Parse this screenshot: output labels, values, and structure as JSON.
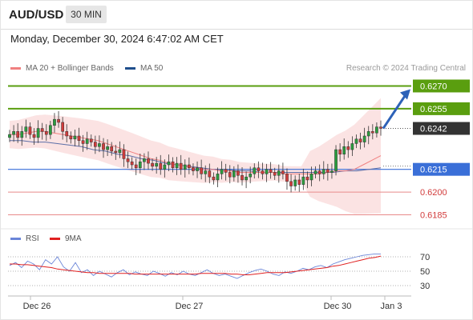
{
  "header": {
    "symbol": "AUD/USD",
    "timeframe": "30 MIN",
    "datetime": "Monday, December 30, 2024 6:47:02 AM CET"
  },
  "legend": {
    "ma20_label": "MA 20 + Bollinger Bands",
    "ma20_color": "#f08080",
    "ma50_label": "MA 50",
    "ma50_color": "#1f4e8c"
  },
  "credit": "Research © 2024 Trading Central",
  "rsi_legend": {
    "rsi_label": "RSI",
    "rsi_color": "#6a85d8",
    "ma9_label": "9MA",
    "ma9_color": "#e02020"
  },
  "colors": {
    "resistance": "#5a9e0f",
    "support_blue": "#3a6fd8",
    "support_red": "#e88a8a",
    "candle_up": "#2a9d3e",
    "candle_down": "#d23c3c",
    "arrow": "#2d62b8",
    "current": "#333333",
    "band_fill": "#fbe3e3"
  },
  "chart_data": [
    {
      "type": "line",
      "title": "AUD/USD 30 MIN",
      "x_ticks": [
        "Dec 26",
        "Dec 27",
        "Dec 30",
        "Jan 3"
      ],
      "ylim": [
        0.618,
        0.6275
      ],
      "levels": [
        {
          "value": 0.627,
          "label": "0.6270",
          "kind": "resistance"
        },
        {
          "value": 0.6255,
          "label": "0.6255",
          "kind": "resistance"
        },
        {
          "value": 0.6242,
          "label": "0.6242",
          "kind": "current"
        },
        {
          "value": 0.6215,
          "label": "0.6215",
          "kind": "support"
        },
        {
          "value": 0.62,
          "label": "0.6200",
          "kind": "level"
        },
        {
          "value": 0.6185,
          "label": "0.6185",
          "kind": "level"
        }
      ],
      "series": [
        {
          "name": "Price",
          "values": [
            0.6238,
            0.624,
            0.6236,
            0.624,
            0.6243,
            0.6238,
            0.6236,
            0.6242,
            0.624,
            0.6238,
            0.6244,
            0.6248,
            0.6246,
            0.624,
            0.6237,
            0.6235,
            0.6237,
            0.6234,
            0.6232,
            0.6235,
            0.6233,
            0.623,
            0.6232,
            0.6228,
            0.623,
            0.6227,
            0.6226,
            0.6228,
            0.6222,
            0.622,
            0.6218,
            0.6216,
            0.622,
            0.6222,
            0.6219,
            0.6217,
            0.6219,
            0.6215,
            0.6218,
            0.622,
            0.6216,
            0.6219,
            0.6215,
            0.6218,
            0.6216,
            0.6214,
            0.6216,
            0.6212,
            0.6214,
            0.621,
            0.6208,
            0.6212,
            0.6215,
            0.6213,
            0.621,
            0.6214,
            0.6211,
            0.6208,
            0.621,
            0.6212,
            0.6216,
            0.6214,
            0.6212,
            0.6215,
            0.6213,
            0.6211,
            0.6214,
            0.6212,
            0.6207,
            0.6204,
            0.6208,
            0.6205,
            0.621,
            0.6208,
            0.6212,
            0.6214,
            0.6212,
            0.6215,
            0.6213,
            0.6214,
            0.6228,
            0.6225,
            0.623,
            0.6228,
            0.6232,
            0.6235,
            0.6233,
            0.6237,
            0.624,
            0.6239,
            0.6243,
            0.6242
          ]
        },
        {
          "name": "MA 20",
          "values": [
            0.6238,
            0.6238,
            0.6239,
            0.624,
            0.624,
            0.6239,
            0.6238,
            0.6237,
            0.6236,
            0.6235,
            0.6234,
            0.6232,
            0.623,
            0.6228,
            0.6226,
            0.6224,
            0.6222,
            0.6221,
            0.6219,
            0.6218,
            0.6217,
            0.6216,
            0.6215,
            0.6215,
            0.6214,
            0.6214,
            0.6213,
            0.6213,
            0.6213,
            0.6213,
            0.6213,
            0.6212,
            0.6212,
            0.6212,
            0.6212,
            0.6212,
            0.6213,
            0.6214,
            0.6214,
            0.6215,
            0.6218,
            0.6221,
            0.6224
          ]
        },
        {
          "name": "MA 50",
          "values": [
            0.6234,
            0.6234,
            0.6233,
            0.6233,
            0.6232,
            0.6231,
            0.623,
            0.6228,
            0.6227,
            0.6225,
            0.6224,
            0.6222,
            0.6221,
            0.6219,
            0.6218,
            0.6217,
            0.6216,
            0.6215,
            0.6215,
            0.6214,
            0.6214,
            0.6213,
            0.6213,
            0.6213,
            0.6213,
            0.6213,
            0.6213,
            0.6213,
            0.6214,
            0.6214,
            0.6215,
            0.6216
          ]
        }
      ]
    },
    {
      "type": "line",
      "title": "RSI",
      "x_ticks": [
        "Dec 26",
        "Dec 27",
        "Dec 30",
        "Jan 3"
      ],
      "ylim": [
        20,
        80
      ],
      "y_ticks": [
        70,
        50,
        30
      ],
      "series": [
        {
          "name": "RSI",
          "values": [
            58,
            62,
            55,
            64,
            60,
            52,
            66,
            60,
            70,
            56,
            50,
            62,
            48,
            52,
            44,
            50,
            46,
            42,
            48,
            52,
            45,
            49,
            46,
            44,
            50,
            47,
            43,
            48,
            45,
            50,
            46,
            44,
            48,
            52,
            47,
            44,
            46,
            43,
            40,
            44,
            48,
            51,
            53,
            50,
            46,
            44,
            49,
            47,
            50,
            54,
            52,
            56,
            58,
            55,
            60,
            63,
            66,
            68,
            70,
            72,
            73,
            74,
            74
          ]
        },
        {
          "name": "9MA",
          "values": [
            60,
            60,
            59,
            59,
            58,
            57,
            56,
            55,
            53,
            52,
            51,
            50,
            49,
            48,
            48,
            47,
            47,
            47,
            47,
            47,
            47,
            46,
            46,
            46,
            46,
            46,
            46,
            46,
            46,
            46,
            46,
            46,
            47,
            47,
            47,
            47,
            47,
            46,
            46,
            45,
            45,
            46,
            47,
            48,
            48,
            48,
            48,
            49,
            50,
            51,
            52,
            53,
            54,
            55,
            57,
            58,
            60,
            62,
            64,
            66,
            68,
            69,
            71
          ]
        }
      ]
    }
  ]
}
